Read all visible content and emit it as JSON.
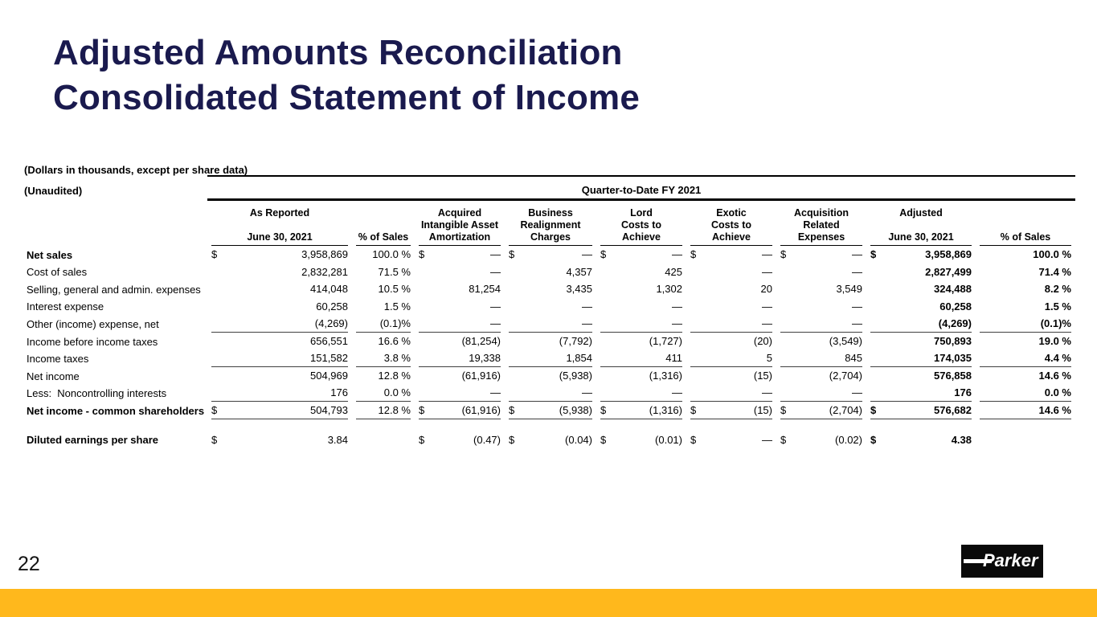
{
  "title": {
    "line1": "Adjusted Amounts Reconciliation",
    "line2": "Consolidated Statement of Income"
  },
  "notes": {
    "dollars": "(Dollars in thousands, except per share data)",
    "unaudited": "(Unaudited)"
  },
  "table": {
    "span_header": "Quarter-to-Date FY 2021",
    "columns": [
      {
        "lines": [
          "As Reported",
          "",
          "June 30, 2021"
        ]
      },
      {
        "lines": [
          "",
          "",
          "% of Sales"
        ]
      },
      {
        "lines": [
          "Acquired",
          "Intangible Asset",
          "Amortization"
        ]
      },
      {
        "lines": [
          "Business",
          "Realignment",
          "Charges"
        ]
      },
      {
        "lines": [
          "Lord",
          "Costs to",
          "Achieve"
        ]
      },
      {
        "lines": [
          "Exotic",
          "Costs to",
          "Achieve"
        ]
      },
      {
        "lines": [
          "Acquisition",
          "Related",
          "Expenses"
        ]
      },
      {
        "lines": [
          "Adjusted",
          "",
          "June 30, 2021"
        ]
      },
      {
        "lines": [
          "",
          "",
          "% of Sales"
        ]
      }
    ],
    "bold_columns": [
      7,
      8
    ],
    "rows": [
      {
        "label": "Net sales",
        "bold_label": true,
        "cells": [
          [
            "$",
            "3,958,869"
          ],
          [
            "",
            "100.0 %"
          ],
          [
            "$",
            "—"
          ],
          [
            "$",
            "—"
          ],
          [
            "$",
            "—"
          ],
          [
            "$",
            "—"
          ],
          [
            "$",
            "—"
          ],
          [
            "$",
            "3,958,869"
          ],
          [
            "",
            "100.0 %"
          ]
        ]
      },
      {
        "label": "Cost of sales",
        "cells": [
          [
            "",
            "2,832,281"
          ],
          [
            "",
            "71.5 %"
          ],
          [
            "",
            "—"
          ],
          [
            "",
            "4,357"
          ],
          [
            "",
            "425"
          ],
          [
            "",
            "—"
          ],
          [
            "",
            "—"
          ],
          [
            "",
            "2,827,499"
          ],
          [
            "",
            "71.4 %"
          ]
        ]
      },
      {
        "label": "Selling, general and admin. expenses",
        "cells": [
          [
            "",
            "414,048"
          ],
          [
            "",
            "10.5 %"
          ],
          [
            "",
            "81,254"
          ],
          [
            "",
            "3,435"
          ],
          [
            "",
            "1,302"
          ],
          [
            "",
            "20"
          ],
          [
            "",
            "3,549"
          ],
          [
            "",
            "324,488"
          ],
          [
            "",
            "8.2 %"
          ]
        ]
      },
      {
        "label": "Interest expense",
        "cells": [
          [
            "",
            "60,258"
          ],
          [
            "",
            "1.5 %"
          ],
          [
            "",
            "—"
          ],
          [
            "",
            "—"
          ],
          [
            "",
            "—"
          ],
          [
            "",
            "—"
          ],
          [
            "",
            "—"
          ],
          [
            "",
            "60,258"
          ],
          [
            "",
            "1.5 %"
          ]
        ]
      },
      {
        "label": "Other (income) expense, net",
        "rule_after": true,
        "cells": [
          [
            "",
            "(4,269)"
          ],
          [
            "",
            "(0.1)%"
          ],
          [
            "",
            "—"
          ],
          [
            "",
            "—"
          ],
          [
            "",
            "—"
          ],
          [
            "",
            "—"
          ],
          [
            "",
            "—"
          ],
          [
            "",
            "(4,269)"
          ],
          [
            "",
            "(0.1)%"
          ]
        ]
      },
      {
        "label": "Income before income taxes",
        "cells": [
          [
            "",
            "656,551"
          ],
          [
            "",
            "16.6 %"
          ],
          [
            "",
            "(81,254)"
          ],
          [
            "",
            "(7,792)"
          ],
          [
            "",
            "(1,727)"
          ],
          [
            "",
            "(20)"
          ],
          [
            "",
            "(3,549)"
          ],
          [
            "",
            "750,893"
          ],
          [
            "",
            "19.0 %"
          ]
        ]
      },
      {
        "label": "Income taxes",
        "rule_after": true,
        "cells": [
          [
            "",
            "151,582"
          ],
          [
            "",
            "3.8 %"
          ],
          [
            "",
            "19,338"
          ],
          [
            "",
            "1,854"
          ],
          [
            "",
            "411"
          ],
          [
            "",
            "5"
          ],
          [
            "",
            "845"
          ],
          [
            "",
            "174,035"
          ],
          [
            "",
            "4.4 %"
          ]
        ]
      },
      {
        "label": "Net income",
        "cells": [
          [
            "",
            "504,969"
          ],
          [
            "",
            "12.8 %"
          ],
          [
            "",
            "(61,916)"
          ],
          [
            "",
            "(5,938)"
          ],
          [
            "",
            "(1,316)"
          ],
          [
            "",
            "(15)"
          ],
          [
            "",
            "(2,704)"
          ],
          [
            "",
            "576,858"
          ],
          [
            "",
            "14.6 %"
          ]
        ]
      },
      {
        "label": "Less:  Noncontrolling interests",
        "rule_after": true,
        "cells": [
          [
            "",
            "176"
          ],
          [
            "",
            "0.0 %"
          ],
          [
            "",
            "—"
          ],
          [
            "",
            "—"
          ],
          [
            "",
            "—"
          ],
          [
            "",
            "—"
          ],
          [
            "",
            "—"
          ],
          [
            "",
            "176"
          ],
          [
            "",
            "0.0 %"
          ]
        ]
      },
      {
        "label": "Net income - common shareholders",
        "bold_label": true,
        "rule_after": true,
        "cells": [
          [
            "$",
            "504,793"
          ],
          [
            "",
            "12.8 %"
          ],
          [
            "$",
            "(61,916)"
          ],
          [
            "$",
            "(5,938)"
          ],
          [
            "$",
            "(1,316)"
          ],
          [
            "$",
            "(15)"
          ],
          [
            "$",
            "(2,704)"
          ],
          [
            "$",
            "576,682"
          ],
          [
            "",
            "14.6 %"
          ]
        ]
      },
      {
        "spacer": true
      },
      {
        "label": "Diluted earnings per share",
        "bold_label": true,
        "cells": [
          [
            "$",
            "3.84"
          ],
          [
            "",
            ""
          ],
          [
            "$",
            "(0.47)"
          ],
          [
            "$",
            "(0.04)"
          ],
          [
            "$",
            "(0.01)"
          ],
          [
            "$",
            "—"
          ],
          [
            "$",
            "(0.02)"
          ],
          [
            "$",
            "4.38"
          ],
          [
            "",
            ""
          ]
        ]
      }
    ]
  },
  "footer": {
    "page_number": "22",
    "logo_text": "Parker"
  },
  "colors": {
    "accent_bar": "#FFB81C",
    "title_text": "#1A1A4E",
    "logo_bg": "#0A0A0A"
  }
}
